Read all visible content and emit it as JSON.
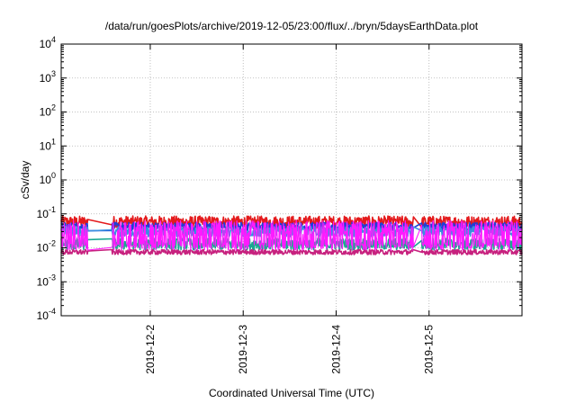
{
  "chart_data": {
    "type": "line",
    "title": "/data/run/goesPlots/archive/2019-12-05/23:00/flux/../bryn/5daysEarthData.plot",
    "xlabel": "Coordinated Universal Time (UTC)",
    "ylabel": "cSv/day",
    "y_scale": "log",
    "ylim": [
      0.0001,
      10000
    ],
    "y_ticks": [
      {
        "value": 0.0001,
        "base": "10",
        "exp": "-4"
      },
      {
        "value": 0.001,
        "base": "10",
        "exp": "-3"
      },
      {
        "value": 0.01,
        "base": "10",
        "exp": "-2"
      },
      {
        "value": 0.1,
        "base": "10",
        "exp": "-1"
      },
      {
        "value": 1,
        "base": "10",
        "exp": "0"
      },
      {
        "value": 10,
        "base": "10",
        "exp": "1"
      },
      {
        "value": 100,
        "base": "10",
        "exp": "2"
      },
      {
        "value": 1000,
        "base": "10",
        "exp": "3"
      },
      {
        "value": 10000,
        "base": "10",
        "exp": "4"
      }
    ],
    "xlim": [
      "2019-12-01T01:00",
      "2019-12-06T00:00"
    ],
    "x_ticks": [
      {
        "value": "2019-12-02T00:00",
        "label": "2019-12-2"
      },
      {
        "value": "2019-12-03T00:00",
        "label": "2019-12-3"
      },
      {
        "value": "2019-12-04T00:00",
        "label": "2019-12-4"
      },
      {
        "value": "2019-12-05T00:00",
        "label": "2019-12-5"
      }
    ],
    "grid": true,
    "gaps": [
      [
        "2019-12-01T08:00",
        "2019-12-01T14:00"
      ],
      [
        "2019-12-04T20:00",
        "2019-12-04T22:00"
      ]
    ],
    "series": [
      {
        "color": "#e41a1c",
        "base": 0.058,
        "noise": 0.35
      },
      {
        "color": "#1f3fd6",
        "base": 0.042,
        "noise": 0.25
      },
      {
        "color": "#3a8fe0",
        "base": 0.03,
        "noise": 0.3
      },
      {
        "color": "#1aa891",
        "base": 0.013,
        "noise": 0.35
      },
      {
        "color": "#c7217e",
        "base": 0.0075,
        "noise": 0.15
      },
      {
        "color": "#ff1aff",
        "base": 0.0085,
        "noise": 1.0
      }
    ]
  }
}
